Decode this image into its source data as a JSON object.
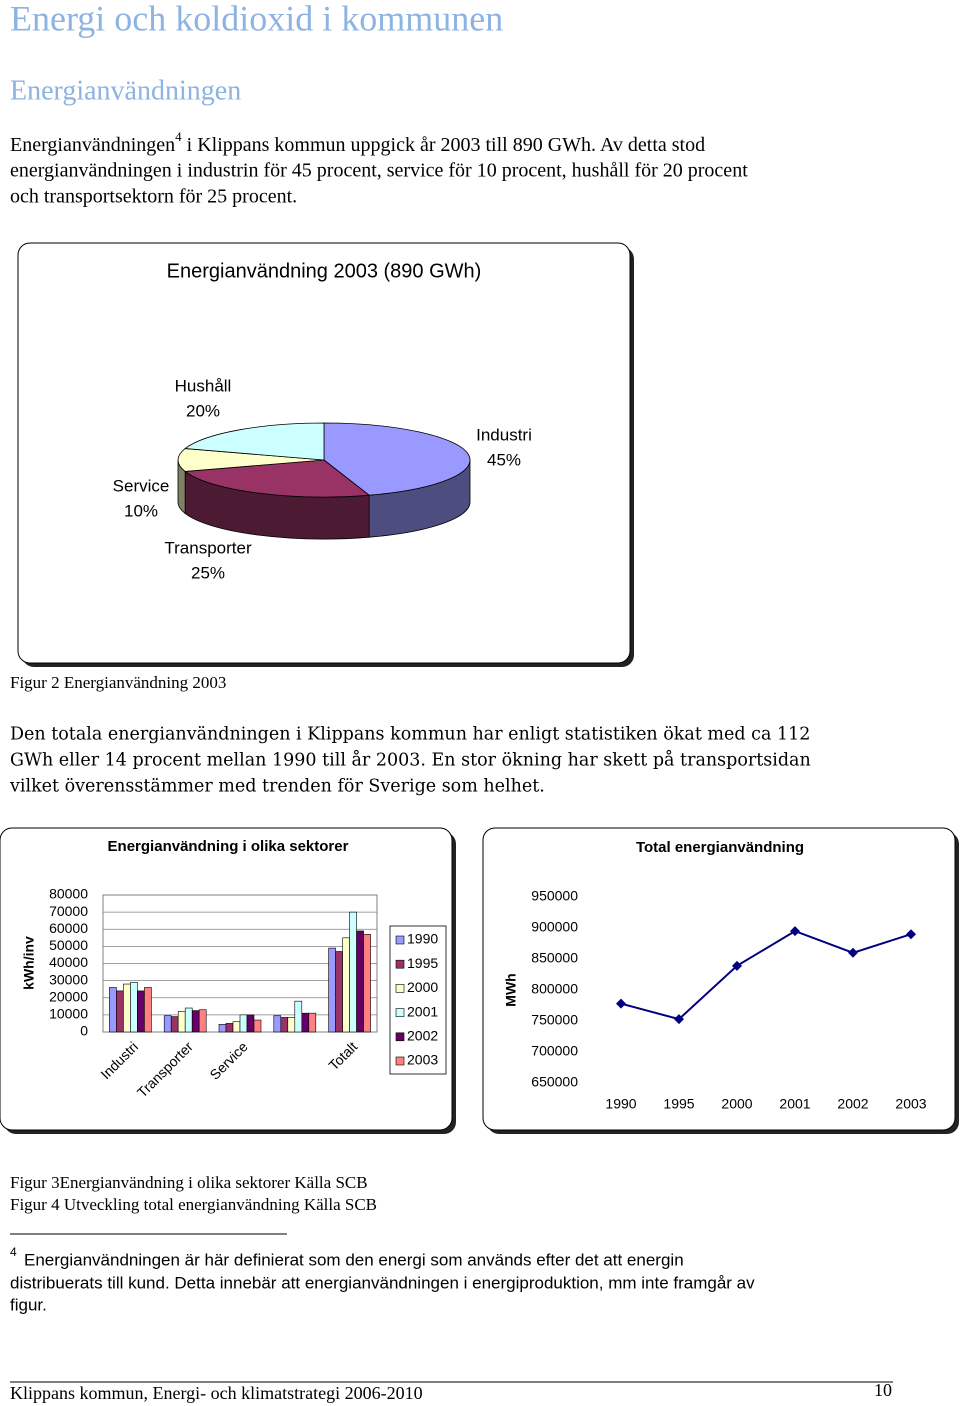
{
  "title": "Energi och koldioxid i kommunen",
  "heading": "Energianvändningen",
  "intro": {
    "lead": "Energianvändningen",
    "ref": "4",
    "lines": [
      " i Klippans kommun uppgick år 2003 till 890 GWh. Av detta stod",
      "energianvändningen i industrin för 45 procent, service för 10 procent, hushåll för 20 procent",
      "och transportsektorn för 25 procent."
    ]
  },
  "figure_2_caption": "Figur 2 Energianvändning 2003",
  "body": {
    "lines": [
      "Den totala energianvändningen i Klippans kommun har enligt statistiken ökat med ca 112",
      "GWh eller 14 procent mellan 1990 till år 2003. En stor ökning har skett på transportsidan",
      "vilket överensstämmer med trenden för Sverige som helhet."
    ]
  },
  "captions": [
    "Figur 3Energianvändning i olika sektorer Källa SCB",
    "Figur 4 Utveckling total energianvändning Källa SCB"
  ],
  "footnote": {
    "marker": "4",
    "lines": [
      "Energianvändningen är här definierat som den energi som används efter det att energin",
      "distribuerats till kund. Detta innebär att energianvändningen i energiproduktion, mm inte framgår av",
      "figur."
    ]
  },
  "footer": {
    "text": "Klippans kommun, Energi- och klimatstrategi 2006-2010",
    "page": "10"
  },
  "chart_data": [
    {
      "type": "pie",
      "title": "Energianvändning 2003 (890 GWh)",
      "categories": [
        "Industri",
        "Transporter",
        "Service",
        "Hushåll"
      ],
      "values": [
        45,
        25,
        10,
        20
      ],
      "value_labels": [
        "45%",
        "25%",
        "10%",
        "20%"
      ],
      "colors": [
        "#9999ff",
        "#993366",
        "#ffffcc",
        "#ccffff"
      ]
    },
    {
      "type": "bar",
      "title": "Energianvändning i olika sektorer",
      "y_label": "kWh/inv",
      "categories": [
        "Industri",
        "Transporter",
        "Service",
        null,
        "Totalt"
      ],
      "series": [
        {
          "name": "1990",
          "color": "#9999ff",
          "values": [
            26000,
            9500,
            4500,
            9500,
            49000
          ]
        },
        {
          "name": "1995",
          "color": "#993366",
          "values": [
            24000,
            9000,
            5000,
            8500,
            47000
          ]
        },
        {
          "name": "2000",
          "color": "#ffffcc",
          "values": [
            28000,
            12000,
            6000,
            8500,
            55000
          ]
        },
        {
          "name": "2001",
          "color": "#ccffff",
          "values": [
            29000,
            14000,
            10000,
            18000,
            70000
          ]
        },
        {
          "name": "2002",
          "color": "#660066",
          "values": [
            24000,
            12500,
            10000,
            11000,
            59000
          ]
        },
        {
          "name": "2003",
          "color": "#ff8080",
          "values": [
            26000,
            13000,
            7000,
            11000,
            57000
          ]
        }
      ],
      "ylim": [
        0,
        80000
      ],
      "yticks": [
        0,
        10000,
        20000,
        30000,
        40000,
        50000,
        60000,
        70000,
        80000
      ],
      "grid": true
    },
    {
      "type": "line",
      "title": "Total energianvändning",
      "y_label": "MWh",
      "categories": [
        "1990",
        "1995",
        "2000",
        "2001",
        "2002",
        "2003"
      ],
      "values": [
        778000,
        753000,
        839000,
        895000,
        860000,
        890000
      ],
      "color": "#000080",
      "ylim": [
        650000,
        950000
      ],
      "yticks": [
        650000,
        700000,
        750000,
        800000,
        850000,
        900000,
        950000
      ]
    }
  ]
}
